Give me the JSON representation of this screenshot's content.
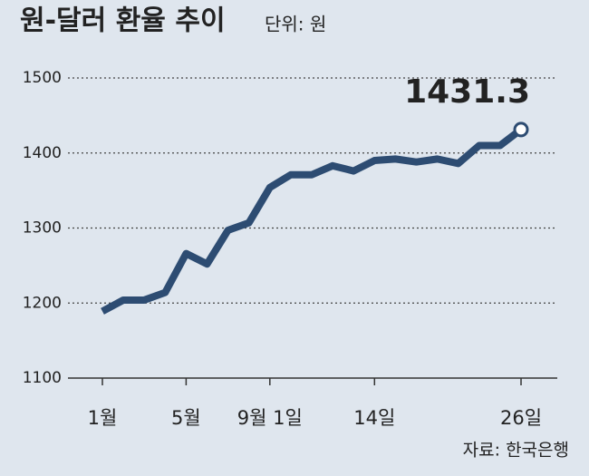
{
  "chart_data": {
    "type": "line",
    "title": "원-달러 환율 추이",
    "subtitle": "단위: 원",
    "source": "자료: 한국은행",
    "categories": [
      "1월",
      null,
      null,
      null,
      "5월",
      null,
      null,
      null,
      "9월 1일",
      null,
      null,
      null,
      null,
      "14일",
      null,
      null,
      null,
      null,
      null,
      null,
      "26일"
    ],
    "series": [
      {
        "name": "원-달러 환율",
        "color": "#2d4c72",
        "values": [
          1189,
          1204,
          1204,
          1214,
          1266,
          1252,
          1297,
          1307,
          1354,
          1371,
          1371,
          1383,
          1376,
          1390,
          1392,
          1388,
          1392,
          1386,
          1410,
          1410,
          1431.3
        ]
      }
    ],
    "ylim": [
      1100,
      1500
    ],
    "yticks": [
      1100,
      1200,
      1300,
      1400,
      1500
    ],
    "grid": true
  }
}
